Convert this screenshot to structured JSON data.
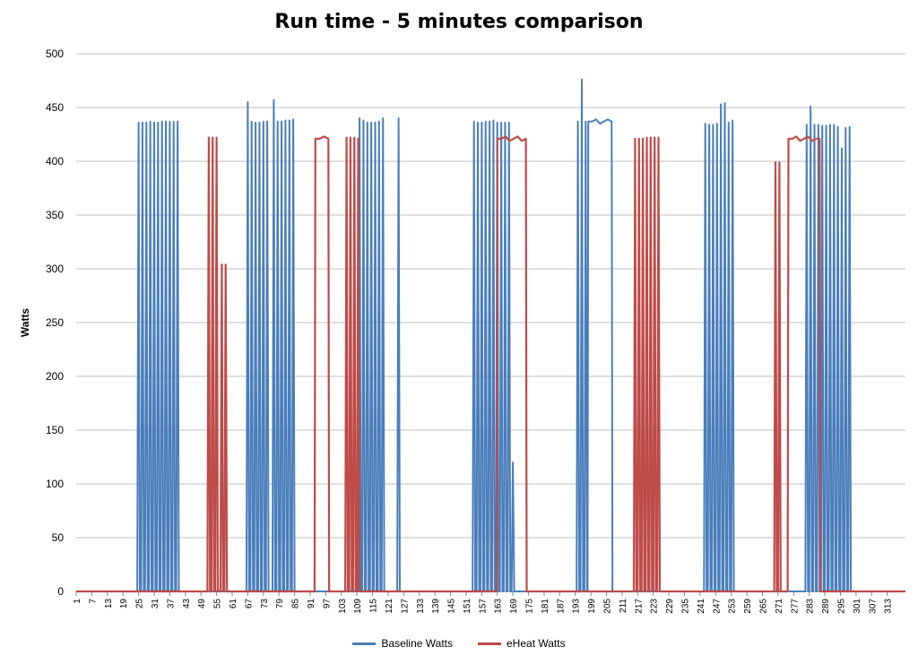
{
  "chart_data": {
    "type": "line",
    "title": "Run time - 5 minutes comparison",
    "xlabel": "",
    "ylabel": "Watts",
    "xlim": [
      1,
      320
    ],
    "ylim": [
      0,
      500
    ],
    "yticks": [
      0,
      50,
      100,
      150,
      200,
      250,
      300,
      350,
      400,
      450,
      500
    ],
    "xtick_labels": [
      "1",
      "7",
      "13",
      "19",
      "25",
      "31",
      "37",
      "43",
      "49",
      "55",
      "61",
      "67",
      "73",
      "79",
      "85",
      "91",
      "97",
      "103",
      "109",
      "115",
      "121",
      "127",
      "133",
      "139",
      "145",
      "151",
      "157",
      "163",
      "169",
      "175",
      "181",
      "187",
      "193",
      "199",
      "205",
      "211",
      "217",
      "223",
      "229",
      "235",
      "241",
      "247",
      "253",
      "259",
      "265",
      "271",
      "277",
      "283",
      "289",
      "295",
      "301",
      "307",
      "313"
    ],
    "grid": "horizontal",
    "legend": "bottom",
    "series": [
      {
        "name": "Baseline Watts",
        "color": "#4a7ebb",
        "spikes": [
          [
            25,
            436
          ],
          [
            26.5,
            436
          ],
          [
            28,
            436
          ],
          [
            29.5,
            437
          ],
          [
            31,
            436
          ],
          [
            32.5,
            436
          ],
          [
            34,
            437
          ],
          [
            35.5,
            437
          ],
          [
            37,
            437
          ],
          [
            38.5,
            437
          ],
          [
            40,
            437
          ],
          [
            67,
            455
          ],
          [
            68.5,
            437
          ],
          [
            70,
            436
          ],
          [
            71.5,
            436
          ],
          [
            73,
            437
          ],
          [
            74.5,
            437
          ],
          [
            77,
            457
          ],
          [
            78.5,
            437
          ],
          [
            80,
            437
          ],
          [
            81.5,
            438
          ],
          [
            83,
            438
          ],
          [
            84.5,
            439
          ],
          [
            110,
            440
          ],
          [
            111.5,
            438
          ],
          [
            113,
            436
          ],
          [
            114.5,
            436
          ],
          [
            116,
            436
          ],
          [
            117.5,
            437
          ],
          [
            119,
            440
          ],
          [
            125,
            440
          ],
          [
            154,
            437
          ],
          [
            155.5,
            436
          ],
          [
            157,
            436
          ],
          [
            158.5,
            437
          ],
          [
            160,
            437
          ],
          [
            161.5,
            438
          ],
          [
            163,
            436
          ],
          [
            164.5,
            436
          ],
          [
            166,
            436
          ],
          [
            167.5,
            436
          ],
          [
            169,
            120
          ],
          [
            194,
            437
          ],
          [
            195.5,
            476
          ],
          [
            197,
            437
          ],
          [
            243,
            435
          ],
          [
            244.5,
            434
          ],
          [
            246,
            434
          ],
          [
            247.5,
            435
          ],
          [
            249,
            453
          ],
          [
            250.5,
            454
          ],
          [
            252,
            436
          ],
          [
            253.5,
            438
          ],
          [
            282,
            434
          ],
          [
            283.5,
            451
          ],
          [
            285,
            434
          ],
          [
            286.5,
            434
          ],
          [
            288,
            433
          ],
          [
            289.5,
            433
          ],
          [
            291,
            434
          ],
          [
            292.5,
            434
          ],
          [
            294,
            432
          ],
          [
            295.5,
            412
          ],
          [
            297,
            431
          ],
          [
            298.5,
            432
          ]
        ],
        "plateaus": [
          [
            198,
            207
          ]
        ]
      },
      {
        "name": "eHeat Watts",
        "color": "#be4b48",
        "spikes": [
          [
            52,
            422
          ],
          [
            53.5,
            422
          ],
          [
            55,
            422
          ],
          [
            57,
            304
          ],
          [
            58.5,
            304
          ],
          [
            105,
            422
          ],
          [
            106.5,
            422
          ],
          [
            108,
            422
          ],
          [
            109.5,
            421
          ],
          [
            216,
            421
          ],
          [
            217.5,
            421
          ],
          [
            219,
            421
          ],
          [
            220.5,
            422
          ],
          [
            222,
            422
          ],
          [
            223.5,
            422
          ],
          [
            225,
            422
          ],
          [
            270,
            399
          ],
          [
            271.5,
            399
          ]
        ],
        "plateaus": [
          [
            93,
            98
          ],
          [
            163,
            174
          ],
          [
            275,
            287
          ]
        ]
      }
    ]
  }
}
